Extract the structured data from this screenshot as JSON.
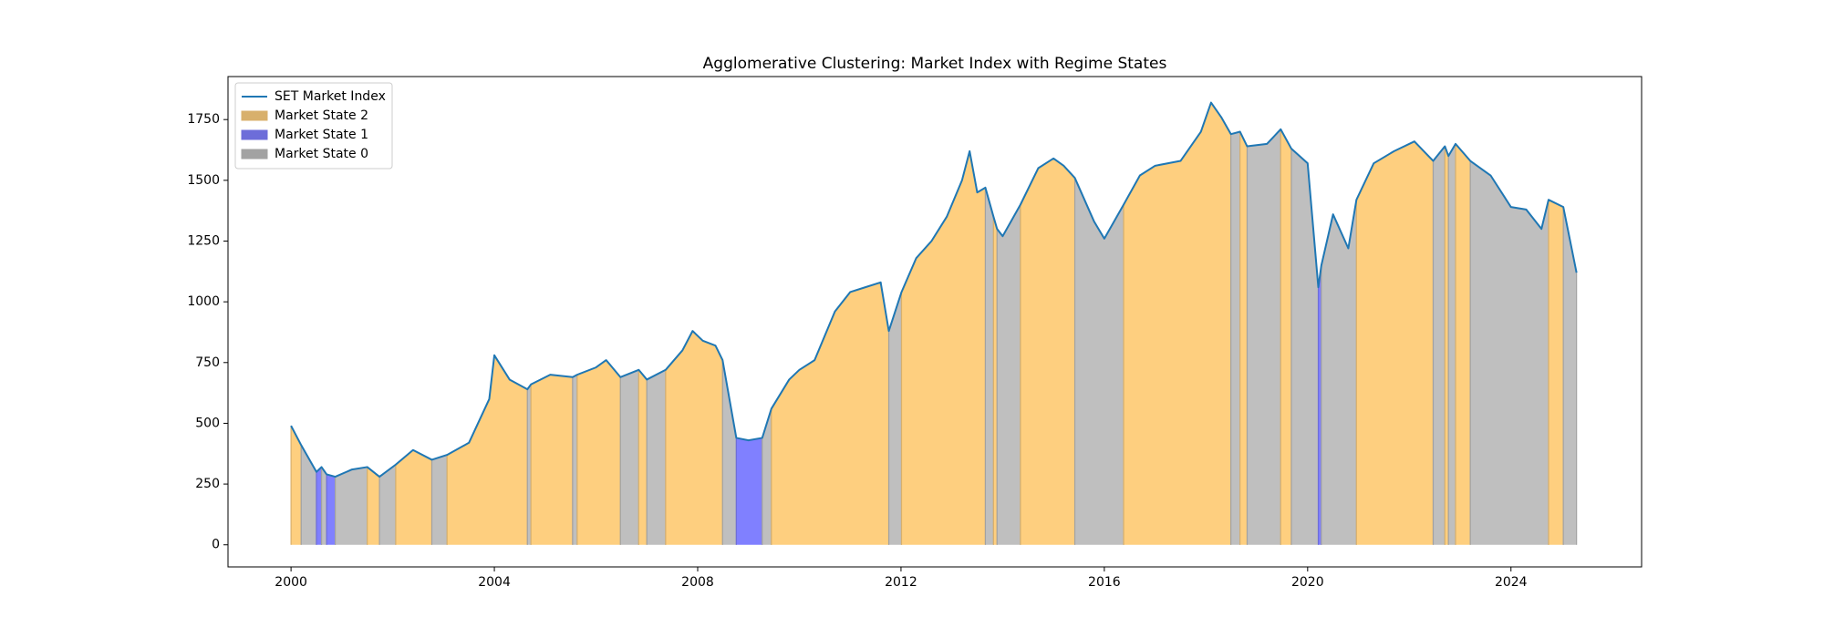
{
  "chart_data": {
    "type": "line",
    "title": "Agglomerative Clustering: Market Index with Regime States",
    "legend": "upper left",
    "xlim": [
      1998.76,
      2026.57
    ],
    "xticks": [
      2000,
      2004,
      2008,
      2012,
      2016,
      2020,
      2024
    ],
    "ylim": [
      -91,
      1927
    ],
    "yticks": [
      0,
      250,
      500,
      750,
      1000,
      1250,
      1500,
      1750
    ],
    "x": [
      2000.0,
      2000.2,
      2000.5,
      2000.6,
      2000.7,
      2000.87,
      2001.2,
      2001.5,
      2001.74,
      2002.06,
      2002.4,
      2002.77,
      2003.07,
      2003.5,
      2003.9,
      2004.0,
      2004.3,
      2004.65,
      2004.72,
      2005.1,
      2005.54,
      2005.63,
      2006.0,
      2006.2,
      2006.48,
      2006.84,
      2007.0,
      2007.37,
      2007.7,
      2007.9,
      2008.1,
      2008.35,
      2008.49,
      2008.76,
      2009.0,
      2009.27,
      2009.45,
      2009.8,
      2010.0,
      2010.3,
      2010.7,
      2011.0,
      2011.3,
      2011.6,
      2011.76,
      2012.01,
      2012.3,
      2012.6,
      2012.9,
      2013.2,
      2013.35,
      2013.5,
      2013.66,
      2013.82,
      2013.89,
      2014.0,
      2014.35,
      2014.7,
      2015.0,
      2015.2,
      2015.42,
      2015.8,
      2016.0,
      2016.38,
      2016.7,
      2017.0,
      2017.5,
      2017.9,
      2018.1,
      2018.3,
      2018.49,
      2018.67,
      2018.81,
      2019.2,
      2019.47,
      2019.68,
      2020.0,
      2020.21,
      2020.27,
      2020.5,
      2020.8,
      2020.96,
      2021.3,
      2021.7,
      2022.1,
      2022.47,
      2022.7,
      2022.77,
      2022.91,
      2023.2,
      2023.6,
      2024.0,
      2024.3,
      2024.6,
      2024.74,
      2025.03,
      2025.29
    ],
    "series": [
      {
        "name": "SET Market Index",
        "color": "#1f77b4",
        "values": [
          490,
          410,
          300,
          320,
          290,
          280,
          310,
          320,
          280,
          330,
          390,
          350,
          370,
          420,
          600,
          780,
          680,
          640,
          660,
          700,
          690,
          700,
          730,
          760,
          690,
          720,
          680,
          720,
          800,
          880,
          840,
          820,
          760,
          440,
          430,
          440,
          560,
          680,
          720,
          760,
          960,
          1040,
          1060,
          1080,
          880,
          1040,
          1180,
          1250,
          1350,
          1500,
          1620,
          1450,
          1470,
          1350,
          1300,
          1270,
          1400,
          1550,
          1590,
          1560,
          1510,
          1330,
          1260,
          1400,
          1520,
          1560,
          1580,
          1700,
          1820,
          1760,
          1690,
          1700,
          1640,
          1650,
          1710,
          1630,
          1570,
          1060,
          1150,
          1360,
          1220,
          1420,
          1570,
          1620,
          1660,
          1580,
          1640,
          1600,
          1650,
          1580,
          1520,
          1390,
          1380,
          1300,
          1420,
          1390,
          1120
        ]
      }
    ],
    "areas": [
      {
        "name": "Market State 2",
        "state": 2,
        "color": "#fecf7f"
      },
      {
        "name": "Market State 1",
        "state": 1,
        "color": "#8080ff"
      },
      {
        "name": "Market State 0",
        "state": 0,
        "color": "#bfbfbf"
      }
    ],
    "regimes": [
      {
        "state": 2,
        "start": 2000.0,
        "end": 2000.2
      },
      {
        "state": 0,
        "start": 2000.2,
        "end": 2000.5
      },
      {
        "state": 1,
        "start": 2000.5,
        "end": 2000.6
      },
      {
        "state": 0,
        "start": 2000.6,
        "end": 2000.7
      },
      {
        "state": 1,
        "start": 2000.7,
        "end": 2000.87
      },
      {
        "state": 0,
        "start": 2000.87,
        "end": 2001.5
      },
      {
        "state": 2,
        "start": 2001.5,
        "end": 2001.74
      },
      {
        "state": 0,
        "start": 2001.74,
        "end": 2002.06
      },
      {
        "state": 2,
        "start": 2002.06,
        "end": 2002.77
      },
      {
        "state": 0,
        "start": 2002.77,
        "end": 2003.07
      },
      {
        "state": 2,
        "start": 2003.07,
        "end": 2004.65
      },
      {
        "state": 0,
        "start": 2004.65,
        "end": 2004.72
      },
      {
        "state": 2,
        "start": 2004.72,
        "end": 2005.54
      },
      {
        "state": 0,
        "start": 2005.54,
        "end": 2005.63
      },
      {
        "state": 2,
        "start": 2005.63,
        "end": 2006.48
      },
      {
        "state": 0,
        "start": 2006.48,
        "end": 2006.84
      },
      {
        "state": 2,
        "start": 2006.84,
        "end": 2007.0
      },
      {
        "state": 0,
        "start": 2007.0,
        "end": 2007.37
      },
      {
        "state": 2,
        "start": 2007.37,
        "end": 2008.49
      },
      {
        "state": 0,
        "start": 2008.49,
        "end": 2008.76
      },
      {
        "state": 1,
        "start": 2008.76,
        "end": 2009.27
      },
      {
        "state": 0,
        "start": 2009.27,
        "end": 2009.45
      },
      {
        "state": 2,
        "start": 2009.45,
        "end": 2011.76
      },
      {
        "state": 0,
        "start": 2011.76,
        "end": 2012.01
      },
      {
        "state": 2,
        "start": 2012.01,
        "end": 2013.66
      },
      {
        "state": 0,
        "start": 2013.66,
        "end": 2013.82
      },
      {
        "state": 2,
        "start": 2013.82,
        "end": 2013.89
      },
      {
        "state": 0,
        "start": 2013.89,
        "end": 2014.35
      },
      {
        "state": 2,
        "start": 2014.35,
        "end": 2015.42
      },
      {
        "state": 0,
        "start": 2015.42,
        "end": 2016.38
      },
      {
        "state": 2,
        "start": 2016.38,
        "end": 2018.49
      },
      {
        "state": 0,
        "start": 2018.49,
        "end": 2018.67
      },
      {
        "state": 2,
        "start": 2018.67,
        "end": 2018.81
      },
      {
        "state": 0,
        "start": 2018.81,
        "end": 2019.47
      },
      {
        "state": 2,
        "start": 2019.47,
        "end": 2019.68
      },
      {
        "state": 0,
        "start": 2019.68,
        "end": 2020.21
      },
      {
        "state": 1,
        "start": 2020.21,
        "end": 2020.27
      },
      {
        "state": 0,
        "start": 2020.27,
        "end": 2020.96
      },
      {
        "state": 2,
        "start": 2020.96,
        "end": 2022.47
      },
      {
        "state": 0,
        "start": 2022.47,
        "end": 2022.7
      },
      {
        "state": 2,
        "start": 2022.7,
        "end": 2022.77
      },
      {
        "state": 0,
        "start": 2022.77,
        "end": 2022.91
      },
      {
        "state": 2,
        "start": 2022.91,
        "end": 2023.2
      },
      {
        "state": 0,
        "start": 2023.2,
        "end": 2024.74
      },
      {
        "state": 2,
        "start": 2024.74,
        "end": 2025.03
      },
      {
        "state": 0,
        "start": 2025.03,
        "end": 2025.29
      }
    ]
  }
}
